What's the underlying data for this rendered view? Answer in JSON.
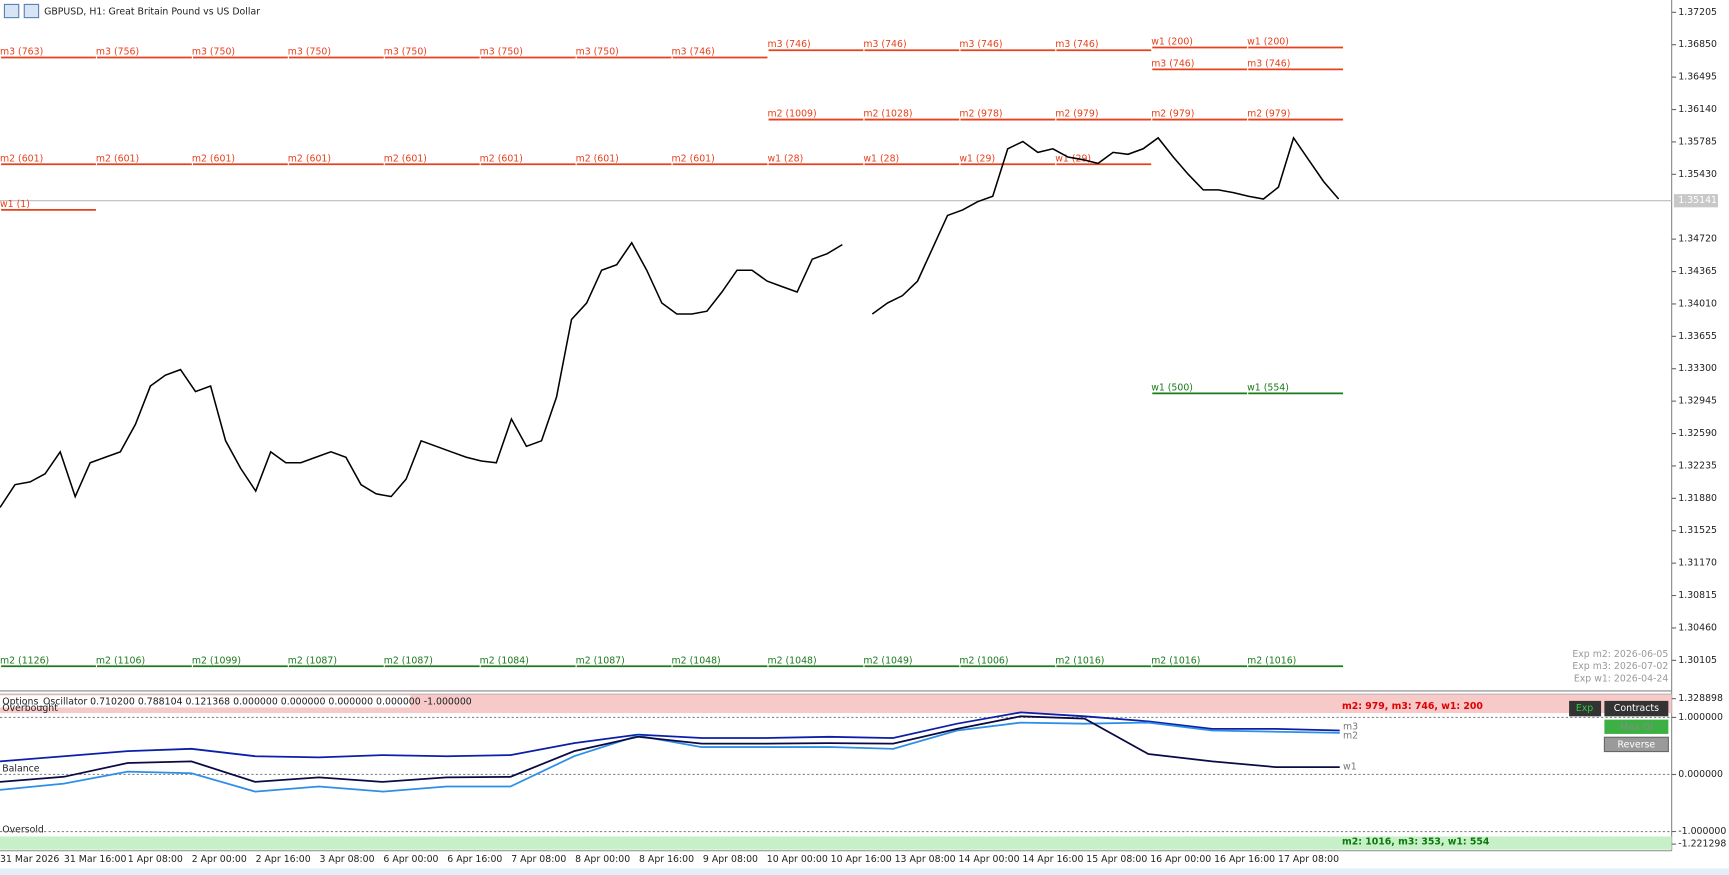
{
  "header": {
    "title": "GBPUSD, H1:  Great Britain Pound vs US Dollar"
  },
  "main": {
    "ylim": [
      1.2983,
      1.3734
    ],
    "yticks": [
      {
        "value": 1.37205,
        "label": "1.37205"
      },
      {
        "value": 1.3685,
        "label": "1.36850"
      },
      {
        "value": 1.36495,
        "label": "1.36495"
      },
      {
        "value": 1.3614,
        "label": "1.36140"
      },
      {
        "value": 1.35785,
        "label": "1.35785"
      },
      {
        "value": 1.3543,
        "label": "1.35430"
      },
      {
        "value": 1.3472,
        "label": "1.34720"
      },
      {
        "value": 1.34365,
        "label": "1.34365"
      },
      {
        "value": 1.3401,
        "label": "1.34010"
      },
      {
        "value": 1.33655,
        "label": "1.33655"
      },
      {
        "value": 1.333,
        "label": "1.33300"
      },
      {
        "value": 1.32945,
        "label": "1.32945"
      },
      {
        "value": 1.3259,
        "label": "1.32590"
      },
      {
        "value": 1.32235,
        "label": "1.32235"
      },
      {
        "value": 1.3188,
        "label": "1.31880"
      },
      {
        "value": 1.31525,
        "label": "1.31525"
      },
      {
        "value": 1.3117,
        "label": "1.31170"
      },
      {
        "value": 1.30815,
        "label": "1.30815"
      },
      {
        "value": 1.3046,
        "label": "1.30460"
      },
      {
        "value": 1.30105,
        "label": "1.30105"
      }
    ],
    "current_price": 1.35141,
    "price": [
      1.3178,
      1.3203,
      1.3206,
      1.3215,
      1.3239,
      1.319,
      1.3227,
      1.3233,
      1.3239,
      1.3269,
      1.3311,
      1.3323,
      1.3329,
      1.3305,
      1.3311,
      1.3251,
      1.3221,
      1.3196,
      1.3239,
      1.3227,
      1.3227,
      1.3233,
      1.3239,
      1.3233,
      1.3203,
      1.3193,
      1.319,
      1.3209,
      1.3251,
      1.3245,
      1.3239,
      1.3233,
      1.3229,
      1.3227,
      1.3275,
      1.3245,
      1.3251,
      1.3299,
      1.3384,
      1.3402,
      1.3438,
      1.3444,
      1.3468,
      1.3438,
      1.3402,
      1.339,
      1.339,
      1.3393,
      1.3414,
      1.3438,
      1.3438,
      1.3426,
      1.342,
      1.3414,
      1.345,
      1.3456,
      1.3466,
      null,
      1.339,
      1.3402,
      1.341,
      1.3426,
      1.3462,
      1.3498,
      1.3504,
      1.3513,
      1.3519,
      1.3571,
      1.3579,
      1.3567,
      1.3571,
      1.3562,
      1.3559,
      1.3555,
      1.3567,
      1.3565,
      1.3571,
      1.3583,
      1.3562,
      1.3543,
      1.3526,
      1.3526,
      1.3523,
      1.3519,
      1.3516,
      1.3529,
      1.3583,
      1.3559,
      1.3535,
      1.3516
    ],
    "levels": [
      {
        "price": 1.3671,
        "color": "#e8401c",
        "labels": [
          "m3 (763)",
          "m3 (756)",
          "m3 (750)",
          "m3 (750)",
          "m3 (750)",
          "m3 (750)",
          "m3 (750)",
          "m3 (746)",
          null,
          null,
          null,
          null,
          null,
          null
        ]
      },
      {
        "price": 1.3679,
        "color": "#e8401c",
        "labels": [
          null,
          null,
          null,
          null,
          null,
          null,
          null,
          null,
          "m3 (746)",
          "m3 (746)",
          "m3 (746)",
          "m3 (746)",
          null,
          null
        ]
      },
      {
        "price": 1.3682,
        "color": "#e8401c",
        "labels": [
          null,
          null,
          null,
          null,
          null,
          null,
          null,
          null,
          null,
          null,
          null,
          null,
          "w1 (200)",
          "w1 (200)"
        ]
      },
      {
        "price": 1.3658,
        "color": "#e8401c",
        "labels": [
          null,
          null,
          null,
          null,
          null,
          null,
          null,
          null,
          null,
          null,
          null,
          null,
          "m3 (746)",
          "m3 (746)"
        ]
      },
      {
        "price": 1.3603,
        "color": "#e8401c",
        "labels": [
          null,
          null,
          null,
          null,
          null,
          null,
          null,
          null,
          "m2 (1009)",
          "m2 (1028)",
          "m2 (978)",
          "m2 (979)",
          "m2 (979)",
          "m2 (979)"
        ]
      },
      {
        "price": 1.3554,
        "color": "#e8401c",
        "labels": [
          "m2 (601)",
          "m2 (601)",
          "m2 (601)",
          "m2 (601)",
          "m2 (601)",
          "m2 (601)",
          "m2 (601)",
          "m2 (601)",
          "w1 (28)",
          "w1 (28)",
          "w1 (29)",
          "w1 (29)",
          null,
          null
        ]
      },
      {
        "price": 1.3504,
        "color": "#e8401c",
        "labels": [
          "w1 (1)",
          null,
          null,
          null,
          null,
          null,
          null,
          null,
          null,
          null,
          null,
          null,
          null,
          null
        ]
      },
      {
        "price": 1.3303,
        "color": "#1a7a1a",
        "labels": [
          null,
          null,
          null,
          null,
          null,
          null,
          null,
          null,
          null,
          null,
          null,
          null,
          "w1 (500)",
          "w1 (554)"
        ]
      },
      {
        "price": 1.3004,
        "color": "#1a7a1a",
        "labels": [
          "m2 (1126)",
          "m2 (1106)",
          "m2 (1099)",
          "m2 (1087)",
          "m2 (1087)",
          "m2 (1084)",
          "m2 (1087)",
          "m2 (1048)",
          "m2 (1048)",
          "m2 (1049)",
          "m2 (1006)",
          "m2 (1016)",
          "m2 (1016)",
          "m2 (1016)"
        ]
      }
    ],
    "expiry": [
      "Exp m2: 2026-06-05",
      "Exp m3: 2026-07-02",
      "Exp w1: 2026-04-24"
    ]
  },
  "oscillator": {
    "header": "Options_Oscillator 0.710200 0.788104 0.121368 0.000000 0.000000 0.000000 0.000000 -1.000000",
    "ylim": [
      -1.221298,
      1.328898
    ],
    "yticks": [
      {
        "value": 1.328898,
        "label": "1.328898"
      },
      {
        "value": 1,
        "label": "1.000000"
      },
      {
        "value": 0,
        "label": "0.000000"
      },
      {
        "value": -1,
        "label": "-1.000000"
      },
      {
        "value": -1.221298,
        "label": "-1.221298"
      }
    ],
    "zones": [
      "Overbought",
      "Balance",
      "Oversold"
    ],
    "top_summary": "m2: 979, m3: 746, w1: 200",
    "bottom_summary": "m2: 1016, m3: 353, w1: 554",
    "buttons": [
      "Exp",
      "Contracts",
      "Max OI",
      "Reverse"
    ],
    "series": [
      {
        "name": "m3",
        "color": "#0b1fa8",
        "values": [
          0.23,
          0.32,
          0.41,
          0.45,
          0.32,
          0.3,
          0.34,
          0.32,
          0.34,
          0.55,
          0.7,
          0.64,
          0.64,
          0.66,
          0.64,
          0.89,
          1.09,
          1.02,
          0.93,
          0.8,
          0.8,
          0.77
        ]
      },
      {
        "name": "m2",
        "color": "#2e8fe6",
        "values": [
          -0.27,
          -0.16,
          0.05,
          0.02,
          -0.3,
          -0.21,
          -0.3,
          -0.21,
          -0.21,
          0.32,
          0.68,
          0.48,
          0.48,
          0.48,
          0.45,
          0.77,
          0.91,
          0.89,
          0.91,
          0.77,
          0.75,
          0.73
        ]
      },
      {
        "name": "w1",
        "color": "#0a0a44",
        "values": [
          -0.13,
          -0.04,
          0.2,
          0.23,
          -0.13,
          -0.05,
          -0.13,
          -0.05,
          -0.04,
          0.41,
          0.66,
          0.54,
          0.54,
          0.55,
          0.54,
          0.8,
          1.02,
          0.98,
          0.36,
          0.23,
          0.13,
          0.13
        ]
      }
    ]
  },
  "time_labels": [
    "31 Mar 2026",
    "31 Mar 16:00",
    "1 Apr 08:00",
    "2 Apr 00:00",
    "2 Apr 16:00",
    "3 Apr 08:00",
    "6 Apr 00:00",
    "6 Apr 16:00",
    "7 Apr 08:00",
    "8 Apr 00:00",
    "8 Apr 16:00",
    "9 Apr 08:00",
    "10 Apr 00:00",
    "10 Apr 16:00",
    "13 Apr 08:00",
    "14 Apr 00:00",
    "14 Apr 16:00",
    "15 Apr 08:00",
    "16 Apr 00:00",
    "16 Apr 16:00",
    "17 Apr 08:00"
  ]
}
